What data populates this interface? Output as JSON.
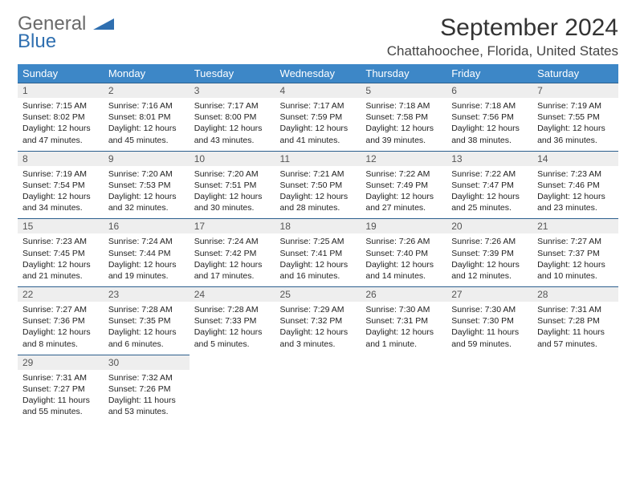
{
  "logo": {
    "text1": "General",
    "text2": "Blue"
  },
  "title": "September 2024",
  "location": "Chattahoochee, Florida, United States",
  "colors": {
    "header_bg": "#3d87c7",
    "header_text": "#ffffff",
    "daynum_bg": "#eeeeee",
    "daynum_border": "#2c5f8d",
    "logo_gray": "#6a6a6a",
    "logo_blue": "#2f6fb0"
  },
  "weekdays": [
    "Sunday",
    "Monday",
    "Tuesday",
    "Wednesday",
    "Thursday",
    "Friday",
    "Saturday"
  ],
  "days": [
    {
      "n": 1,
      "sr": "7:15 AM",
      "ss": "8:02 PM",
      "dl": "12 hours and 47 minutes."
    },
    {
      "n": 2,
      "sr": "7:16 AM",
      "ss": "8:01 PM",
      "dl": "12 hours and 45 minutes."
    },
    {
      "n": 3,
      "sr": "7:17 AM",
      "ss": "8:00 PM",
      "dl": "12 hours and 43 minutes."
    },
    {
      "n": 4,
      "sr": "7:17 AM",
      "ss": "7:59 PM",
      "dl": "12 hours and 41 minutes."
    },
    {
      "n": 5,
      "sr": "7:18 AM",
      "ss": "7:58 PM",
      "dl": "12 hours and 39 minutes."
    },
    {
      "n": 6,
      "sr": "7:18 AM",
      "ss": "7:56 PM",
      "dl": "12 hours and 38 minutes."
    },
    {
      "n": 7,
      "sr": "7:19 AM",
      "ss": "7:55 PM",
      "dl": "12 hours and 36 minutes."
    },
    {
      "n": 8,
      "sr": "7:19 AM",
      "ss": "7:54 PM",
      "dl": "12 hours and 34 minutes."
    },
    {
      "n": 9,
      "sr": "7:20 AM",
      "ss": "7:53 PM",
      "dl": "12 hours and 32 minutes."
    },
    {
      "n": 10,
      "sr": "7:20 AM",
      "ss": "7:51 PM",
      "dl": "12 hours and 30 minutes."
    },
    {
      "n": 11,
      "sr": "7:21 AM",
      "ss": "7:50 PM",
      "dl": "12 hours and 28 minutes."
    },
    {
      "n": 12,
      "sr": "7:22 AM",
      "ss": "7:49 PM",
      "dl": "12 hours and 27 minutes."
    },
    {
      "n": 13,
      "sr": "7:22 AM",
      "ss": "7:47 PM",
      "dl": "12 hours and 25 minutes."
    },
    {
      "n": 14,
      "sr": "7:23 AM",
      "ss": "7:46 PM",
      "dl": "12 hours and 23 minutes."
    },
    {
      "n": 15,
      "sr": "7:23 AM",
      "ss": "7:45 PM",
      "dl": "12 hours and 21 minutes."
    },
    {
      "n": 16,
      "sr": "7:24 AM",
      "ss": "7:44 PM",
      "dl": "12 hours and 19 minutes."
    },
    {
      "n": 17,
      "sr": "7:24 AM",
      "ss": "7:42 PM",
      "dl": "12 hours and 17 minutes."
    },
    {
      "n": 18,
      "sr": "7:25 AM",
      "ss": "7:41 PM",
      "dl": "12 hours and 16 minutes."
    },
    {
      "n": 19,
      "sr": "7:26 AM",
      "ss": "7:40 PM",
      "dl": "12 hours and 14 minutes."
    },
    {
      "n": 20,
      "sr": "7:26 AM",
      "ss": "7:39 PM",
      "dl": "12 hours and 12 minutes."
    },
    {
      "n": 21,
      "sr": "7:27 AM",
      "ss": "7:37 PM",
      "dl": "12 hours and 10 minutes."
    },
    {
      "n": 22,
      "sr": "7:27 AM",
      "ss": "7:36 PM",
      "dl": "12 hours and 8 minutes."
    },
    {
      "n": 23,
      "sr": "7:28 AM",
      "ss": "7:35 PM",
      "dl": "12 hours and 6 minutes."
    },
    {
      "n": 24,
      "sr": "7:28 AM",
      "ss": "7:33 PM",
      "dl": "12 hours and 5 minutes."
    },
    {
      "n": 25,
      "sr": "7:29 AM",
      "ss": "7:32 PM",
      "dl": "12 hours and 3 minutes."
    },
    {
      "n": 26,
      "sr": "7:30 AM",
      "ss": "7:31 PM",
      "dl": "12 hours and 1 minute."
    },
    {
      "n": 27,
      "sr": "7:30 AM",
      "ss": "7:30 PM",
      "dl": "11 hours and 59 minutes."
    },
    {
      "n": 28,
      "sr": "7:31 AM",
      "ss": "7:28 PM",
      "dl": "11 hours and 57 minutes."
    },
    {
      "n": 29,
      "sr": "7:31 AM",
      "ss": "7:27 PM",
      "dl": "11 hours and 55 minutes."
    },
    {
      "n": 30,
      "sr": "7:32 AM",
      "ss": "7:26 PM",
      "dl": "11 hours and 53 minutes."
    }
  ],
  "labels": {
    "sunrise": "Sunrise:",
    "sunset": "Sunset:",
    "daylight": "Daylight:"
  }
}
